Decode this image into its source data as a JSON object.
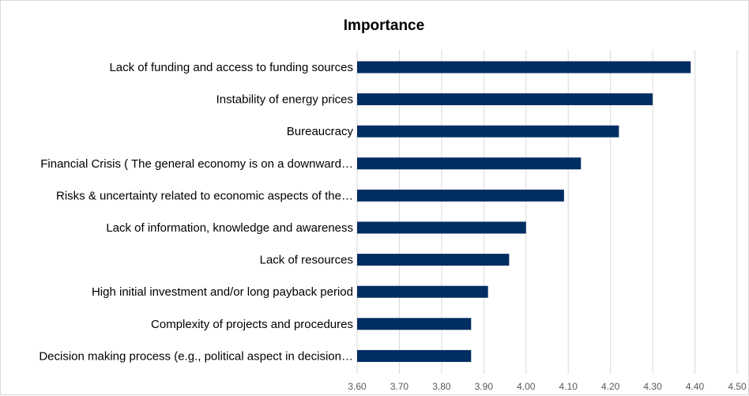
{
  "chart_data": {
    "type": "bar",
    "orientation": "horizontal",
    "title": "Importance",
    "xlabel": "",
    "ylabel": "",
    "categories": [
      "Lack of funding and access to funding sources",
      "Instability of energy prices",
      "Bureaucracy",
      "Financial Crisis ( The general economy is on a downward…",
      "Risks & uncertainty related to economic aspects of the…",
      "Lack of information, knowledge and awareness",
      "Lack of resources",
      "High initial investment and/or long payback period",
      "Complexity of projects and procedures",
      "Decision making process (e.g., political aspect in decision…"
    ],
    "values": [
      4.39,
      4.3,
      4.22,
      4.13,
      4.09,
      4.0,
      3.96,
      3.91,
      3.87,
      3.87
    ],
    "xlim": [
      3.6,
      4.5
    ],
    "xticks": [
      "3.60",
      "3.70",
      "3.80",
      "3.90",
      "4.00",
      "4.10",
      "4.20",
      "4.30",
      "4.40",
      "4.50"
    ],
    "grid": true,
    "legend": "none",
    "bar_color": "#002D62"
  }
}
